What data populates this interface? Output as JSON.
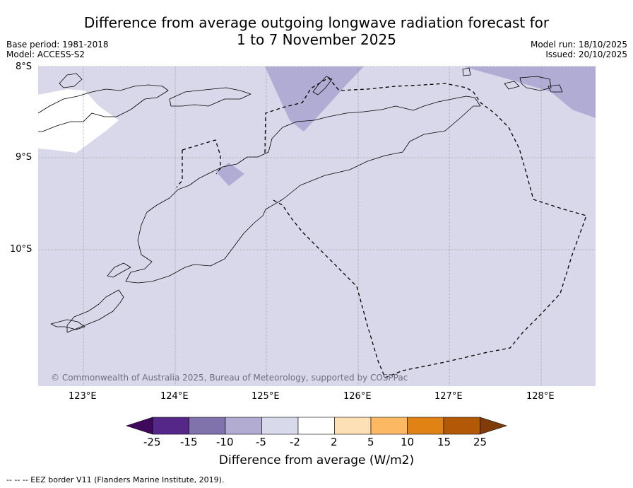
{
  "title": {
    "line1": "Difference from average outgoing longwave radiation forecast for",
    "line2": "1 to 7 November 2025"
  },
  "meta": {
    "base_period": "Base period: 1981-2018",
    "model": "Model: ACCESS-S2",
    "model_run": "Model run: 18/10/2025",
    "issued": "Issued: 20/10/2025"
  },
  "map": {
    "lat_labels": [
      "8°S",
      "9°S",
      "10°S"
    ],
    "lon_labels": [
      "123°E",
      "124°E",
      "125°E",
      "126°E",
      "127°E",
      "128°E"
    ],
    "copyright": "© Commonwealth of Australia 2025, Bureau of Meteorology, supported by COSPPac",
    "colors": {
      "background_fill": "#d8d8ea",
      "neg10_fill": "#b0acd4",
      "neutral_fill": "#ffffff"
    }
  },
  "colorbar": {
    "title": "Difference from average (W/m2)",
    "tick_labels": [
      "-25",
      "-15",
      "-10",
      "-5",
      "-2",
      "2",
      "5",
      "10",
      "15",
      "25"
    ],
    "colors": [
      "#3f0a5c",
      "#542788",
      "#8073ac",
      "#b2abd2",
      "#d8daeb",
      "#ffffff",
      "#fee0b6",
      "#fdb863",
      "#e08214",
      "#b35806",
      "#7f3b08"
    ]
  },
  "footer": {
    "legend": "--  --  -- EEZ border V11 (Flanders Marine Institute, 2019)."
  }
}
